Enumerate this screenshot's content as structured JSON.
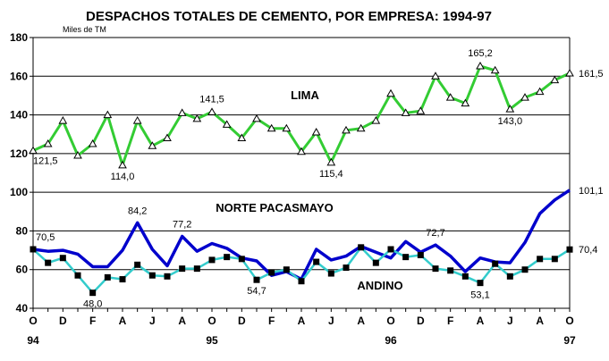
{
  "chart_data": {
    "type": "line",
    "title": "DESPACHOS TOTALES DE CEMENTO, POR EMPRESA: 1994-97",
    "ylabel": "Miles de TM",
    "ylim": [
      40,
      180
    ],
    "yticks": [
      "40",
      "60",
      "80",
      "100",
      "120",
      "140",
      "160",
      "180"
    ],
    "x_month_labels": [
      "O",
      "",
      "D",
      "",
      "F",
      "",
      "A",
      "",
      "J",
      "",
      "A",
      "",
      "O",
      "",
      "D",
      "",
      "F",
      "",
      "A",
      "",
      "J",
      "",
      "A",
      "",
      "O",
      "",
      "D",
      "",
      "F",
      "",
      "A",
      "",
      "J",
      "",
      "A",
      "",
      "O"
    ],
    "x_year_labels": [
      {
        "index": 0,
        "label": "94"
      },
      {
        "index": 12,
        "label": "95"
      },
      {
        "index": 24,
        "label": "96"
      },
      {
        "index": 36,
        "label": "97"
      }
    ],
    "series": [
      {
        "name": "LIMA",
        "color": "#33cc33",
        "marker": "triangle",
        "values": [
          121.5,
          125,
          137,
          119,
          125,
          140,
          114.0,
          137,
          124,
          128,
          141,
          138,
          141.5,
          135,
          128,
          138,
          133,
          133,
          121,
          131,
          115.4,
          132,
          133,
          137,
          151,
          141,
          142,
          160,
          149,
          146,
          165.2,
          163,
          143.0,
          149,
          152,
          158,
          161.5
        ]
      },
      {
        "name": "NORTE PACASMAYO",
        "color": "#0000cc",
        "marker": "none",
        "values": [
          70.5,
          69.5,
          70,
          68,
          61.5,
          61.5,
          70,
          84.2,
          70.5,
          62,
          77.2,
          69.5,
          73.5,
          71,
          66,
          64.5,
          57,
          59,
          55,
          70.5,
          65,
          67,
          72,
          69,
          66,
          74.5,
          69,
          72.7,
          67,
          59,
          66,
          64,
          63.5,
          74,
          89,
          96,
          101.1
        ]
      },
      {
        "name": "ANDINO",
        "color": "#33cccc",
        "marker": "square",
        "values": [
          70.5,
          63.5,
          66,
          57,
          48.0,
          56,
          55,
          62.5,
          57,
          56.5,
          60.5,
          60.5,
          65,
          66.5,
          65.5,
          54.7,
          58.5,
          60,
          54,
          64,
          58,
          61,
          71.5,
          63.5,
          70.5,
          66.5,
          67.5,
          60.5,
          59.5,
          56.5,
          53.1,
          63,
          56.5,
          60,
          65.5,
          65.5,
          70.4
        ]
      }
    ],
    "series_labels": [
      "LIMA",
      "NORTE PACASMAYO",
      "ANDINO"
    ],
    "annotations": [
      {
        "series": 0,
        "index": 0,
        "text": "121,5"
      },
      {
        "series": 0,
        "index": 6,
        "text": "114,0"
      },
      {
        "series": 0,
        "index": 12,
        "text": "141,5"
      },
      {
        "series": 0,
        "index": 20,
        "text": "115,4"
      },
      {
        "series": 0,
        "index": 30,
        "text": "165,2"
      },
      {
        "series": 0,
        "index": 32,
        "text": "143,0"
      },
      {
        "series": 0,
        "index": 36,
        "text": "161,5"
      },
      {
        "series": 1,
        "index": 0,
        "text": "70,5"
      },
      {
        "series": 1,
        "index": 7,
        "text": "84,2"
      },
      {
        "series": 1,
        "index": 10,
        "text": "77,2"
      },
      {
        "series": 1,
        "index": 27,
        "text": "72,7"
      },
      {
        "series": 1,
        "index": 36,
        "text": "101,1"
      },
      {
        "series": 2,
        "index": 4,
        "text": "48,0"
      },
      {
        "series": 2,
        "index": 15,
        "text": "54,7"
      },
      {
        "series": 2,
        "index": 30,
        "text": "53,1"
      },
      {
        "series": 2,
        "index": 36,
        "text": "70,4"
      }
    ]
  }
}
